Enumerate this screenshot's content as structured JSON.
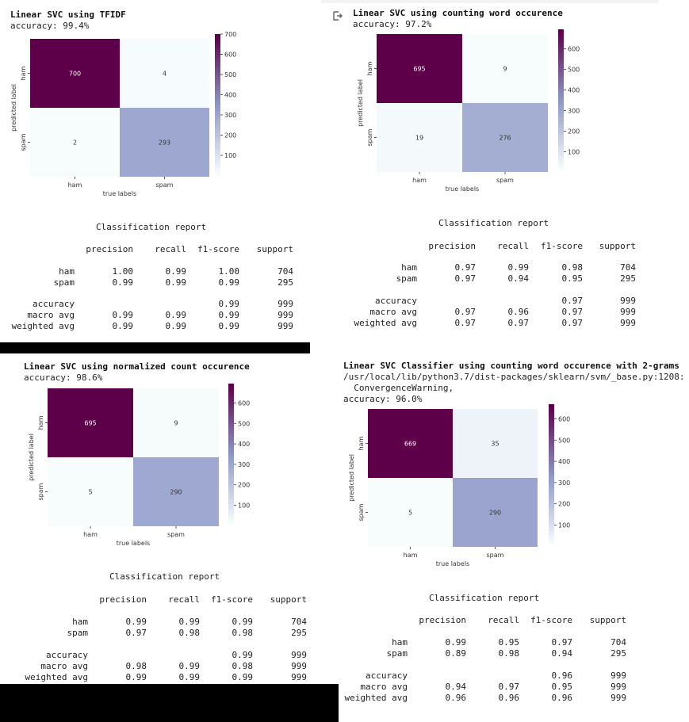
{
  "output_icon": "output-redirect-icon",
  "colors": {
    "cmap_high": "#5d0049",
    "cmap_mid": "#8c96c6",
    "cmap_low": "#f7fcfd",
    "bar": "#000000"
  },
  "panels": [
    {
      "title": "Linear SVC using TFIDF",
      "extra_lines": [],
      "accuracy": "accuracy: 99.4%",
      "cm": {
        "cells": [
          [
            "700",
            "4"
          ],
          [
            "2",
            "293"
          ]
        ],
        "values": [
          [
            700,
            4
          ],
          [
            2,
            293
          ]
        ],
        "vmax": 700,
        "ticks": [
          {
            "v": 700,
            "l": "700"
          },
          {
            "v": 600,
            "l": "600"
          },
          {
            "v": 500,
            "l": "500"
          },
          {
            "v": 400,
            "l": "400"
          },
          {
            "v": 300,
            "l": "300"
          },
          {
            "v": 200,
            "l": "200"
          },
          {
            "v": 100,
            "l": "100"
          }
        ],
        "row_labels": [
          "ham",
          "spam"
        ],
        "col_labels": [
          "ham",
          "spam"
        ],
        "xlabel": "true labels",
        "ylabel": "predicted label"
      },
      "report": {
        "title": "Classification report",
        "header": [
          "precision",
          "recall",
          "f1-score",
          "support"
        ],
        "rows": [
          {
            "label": "ham",
            "vals": [
              "1.00",
              "0.99",
              "1.00",
              "704"
            ]
          },
          {
            "label": "spam",
            "vals": [
              "0.99",
              "0.99",
              "0.99",
              "295"
            ]
          },
          {
            "label": "accuracy",
            "vals": [
              "",
              "",
              "0.99",
              "999"
            ]
          },
          {
            "label": "macro avg",
            "vals": [
              "0.99",
              "0.99",
              "0.99",
              "999"
            ]
          },
          {
            "label": "weighted avg",
            "vals": [
              "0.99",
              "0.99",
              "0.99",
              "999"
            ]
          }
        ]
      }
    },
    {
      "title": "Linear SVC using counting word occurence",
      "extra_lines": [],
      "accuracy": "accuracy: 97.2%",
      "cm": {
        "cells": [
          [
            "695",
            "9"
          ],
          [
            "19",
            "276"
          ]
        ],
        "values": [
          [
            695,
            9
          ],
          [
            19,
            276
          ]
        ],
        "vmax": 695,
        "ticks": [
          {
            "v": 600,
            "l": "600"
          },
          {
            "v": 500,
            "l": "500"
          },
          {
            "v": 400,
            "l": "400"
          },
          {
            "v": 300,
            "l": "300"
          },
          {
            "v": 200,
            "l": "200"
          },
          {
            "v": 100,
            "l": "100"
          }
        ],
        "row_labels": [
          "ham",
          "spam"
        ],
        "col_labels": [
          "ham",
          "spam"
        ],
        "xlabel": "true labels",
        "ylabel": "predicted label"
      },
      "report": {
        "title": "Classification report",
        "header": [
          "precision",
          "recall",
          "f1-score",
          "support"
        ],
        "rows": [
          {
            "label": "ham",
            "vals": [
              "0.97",
              "0.99",
              "0.98",
              "704"
            ]
          },
          {
            "label": "spam",
            "vals": [
              "0.97",
              "0.94",
              "0.95",
              "295"
            ]
          },
          {
            "label": "accuracy",
            "vals": [
              "",
              "",
              "0.97",
              "999"
            ]
          },
          {
            "label": "macro avg",
            "vals": [
              "0.97",
              "0.96",
              "0.97",
              "999"
            ]
          },
          {
            "label": "weighted avg",
            "vals": [
              "0.97",
              "0.97",
              "0.97",
              "999"
            ]
          }
        ]
      }
    },
    {
      "title": "Linear SVC using normalized count occurence",
      "extra_lines": [],
      "accuracy": "accuracy: 98.6%",
      "cm": {
        "cells": [
          [
            "695",
            "9"
          ],
          [
            "5",
            "290"
          ]
        ],
        "values": [
          [
            695,
            9
          ],
          [
            5,
            290
          ]
        ],
        "vmax": 695,
        "ticks": [
          {
            "v": 600,
            "l": "600"
          },
          {
            "v": 500,
            "l": "500"
          },
          {
            "v": 400,
            "l": "400"
          },
          {
            "v": 300,
            "l": "300"
          },
          {
            "v": 200,
            "l": "200"
          },
          {
            "v": 100,
            "l": "100"
          }
        ],
        "row_labels": [
          "ham",
          "spam"
        ],
        "col_labels": [
          "ham",
          "spam"
        ],
        "xlabel": "true labels",
        "ylabel": "predicted label"
      },
      "report": {
        "title": "Classification report",
        "header": [
          "precision",
          "recall",
          "f1-score",
          "support"
        ],
        "rows": [
          {
            "label": "ham",
            "vals": [
              "0.99",
              "0.99",
              "0.99",
              "704"
            ]
          },
          {
            "label": "spam",
            "vals": [
              "0.97",
              "0.98",
              "0.98",
              "295"
            ]
          },
          {
            "label": "accuracy",
            "vals": [
              "",
              "",
              "0.99",
              "999"
            ]
          },
          {
            "label": "macro avg",
            "vals": [
              "0.98",
              "0.99",
              "0.98",
              "999"
            ]
          },
          {
            "label": "weighted avg",
            "vals": [
              "0.99",
              "0.99",
              "0.99",
              "999"
            ]
          }
        ]
      }
    },
    {
      "title": "Linear SVC Classifier using counting word occurence with 2-grams",
      "extra_lines": [
        "/usr/local/lib/python3.7/dist-packages/sklearn/svm/_base.py:1208:",
        "  ConvergenceWarning,"
      ],
      "accuracy": "accuracy: 96.0%",
      "cm": {
        "cells": [
          [
            "669",
            "35"
          ],
          [
            "5",
            "290"
          ]
        ],
        "values": [
          [
            669,
            35
          ],
          [
            5,
            290
          ]
        ],
        "vmax": 669,
        "ticks": [
          {
            "v": 600,
            "l": "600"
          },
          {
            "v": 500,
            "l": "500"
          },
          {
            "v": 400,
            "l": "400"
          },
          {
            "v": 300,
            "l": "300"
          },
          {
            "v": 200,
            "l": "200"
          },
          {
            "v": 100,
            "l": "100"
          }
        ],
        "row_labels": [
          "ham",
          "spam"
        ],
        "col_labels": [
          "ham",
          "spam"
        ],
        "xlabel": "true labels",
        "ylabel": "predicted label"
      },
      "report": {
        "title": "Classification report",
        "header": [
          "precision",
          "recall",
          "f1-score",
          "support"
        ],
        "rows": [
          {
            "label": "ham",
            "vals": [
              "0.99",
              "0.95",
              "0.97",
              "704"
            ]
          },
          {
            "label": "spam",
            "vals": [
              "0.89",
              "0.98",
              "0.94",
              "295"
            ]
          },
          {
            "label": "accuracy",
            "vals": [
              "",
              "",
              "0.96",
              "999"
            ]
          },
          {
            "label": "macro avg",
            "vals": [
              "0.94",
              "0.97",
              "0.95",
              "999"
            ]
          },
          {
            "label": "weighted avg",
            "vals": [
              "0.96",
              "0.96",
              "0.96",
              "999"
            ]
          }
        ]
      }
    }
  ]
}
